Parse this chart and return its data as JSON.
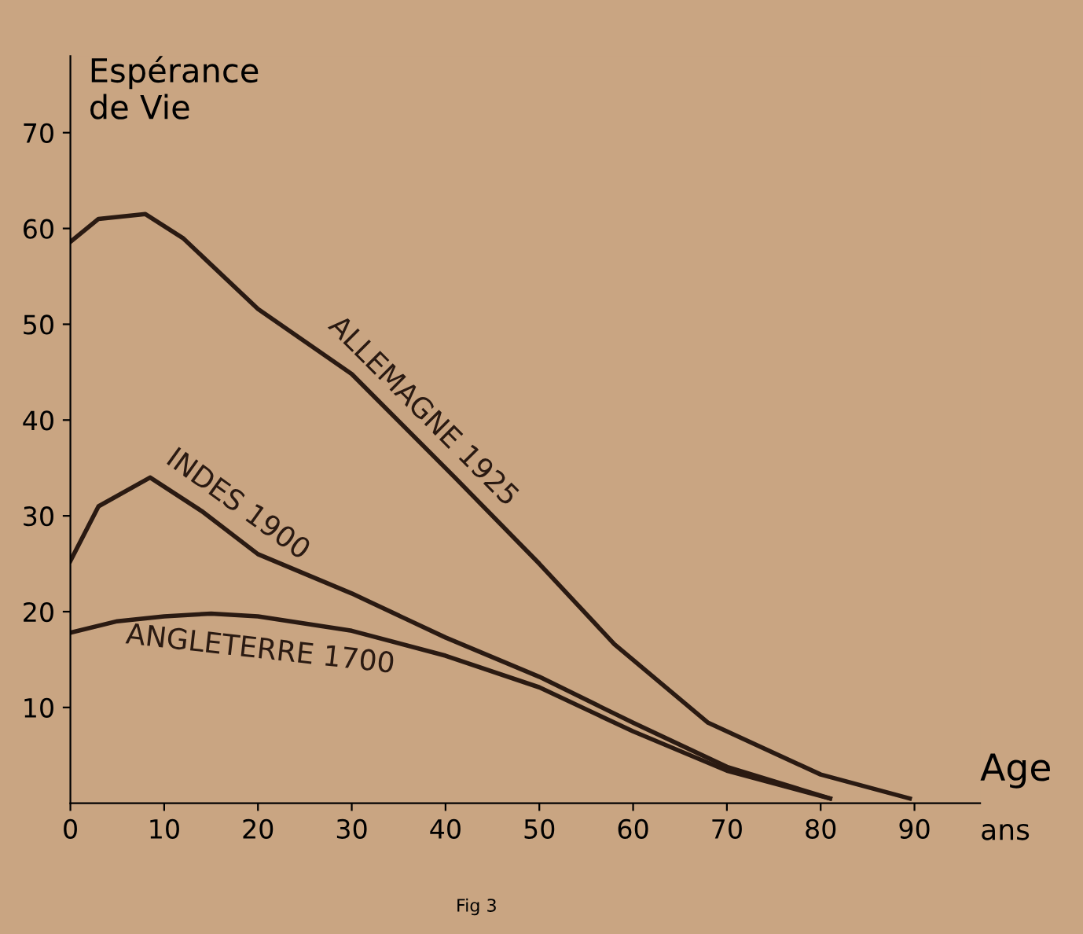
{
  "chart_data": {
    "type": "line",
    "ylabel": "Espérance\nde Vie",
    "xlabel": "Age",
    "annotations": [
      "ans",
      "Fig 3"
    ],
    "xlim": [
      0,
      97
    ],
    "ylim": [
      0,
      78
    ],
    "xticks": [
      0,
      10,
      20,
      30,
      40,
      50,
      60,
      70,
      80,
      90
    ],
    "yticks": [
      10,
      20,
      30,
      40,
      50,
      60,
      70
    ],
    "grid": false,
    "legend": false,
    "marker": "none",
    "line_style": "solid",
    "series": [
      {
        "name": "ALLEMAGNE 1925",
        "color": "#2a1a12",
        "x": [
          0,
          3,
          8,
          12,
          20,
          30,
          41,
          50,
          58,
          68,
          80,
          89.5
        ],
        "values": [
          58.6,
          61,
          61.5,
          59,
          51.6,
          44.8,
          34,
          25,
          16.6,
          8.4,
          3,
          0.5
        ]
      },
      {
        "name": "INDES 1900",
        "color": "#2a1a12",
        "x": [
          0,
          3,
          8.5,
          14,
          20,
          30,
          40,
          50,
          60,
          70,
          81
        ],
        "values": [
          25.3,
          31,
          34,
          30.5,
          26,
          21.9,
          17.3,
          13.2,
          8.4,
          3.8,
          0.5
        ]
      },
      {
        "name": "ANGLETERRE 1700",
        "color": "#2a1a12",
        "x": [
          0,
          5,
          10,
          15,
          20,
          30,
          40,
          50,
          60,
          70,
          81
        ],
        "values": [
          17.8,
          19,
          19.5,
          19.8,
          19.5,
          18,
          15.4,
          12.1,
          7.5,
          3.4,
          0.5
        ]
      }
    ]
  }
}
